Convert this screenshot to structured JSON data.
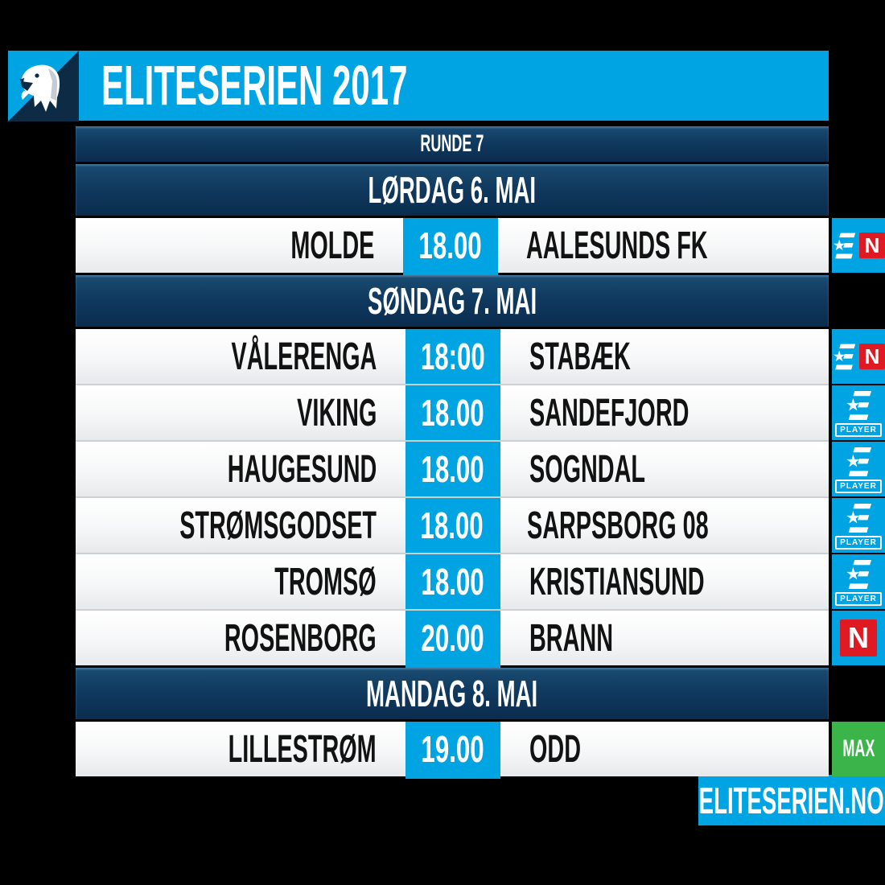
{
  "header": {
    "title": "ELITESERIEN 2017",
    "logo": "eliteserien-bear-logo"
  },
  "round": {
    "label": "RUNDE 7"
  },
  "tv_labels": {
    "n": "N",
    "player": "PLAYER",
    "max": "MAX"
  },
  "footer": {
    "label": "ELITESERIEN.NO"
  },
  "colors": {
    "accent_blue": "#00A4E2",
    "navy_bar": "#0E3456",
    "row_white": "#F4F6F7",
    "broadcaster_red": "#E01A22",
    "broadcaster_green": "#3BB54A",
    "text_black": "#121212",
    "text_white": "#FFFFFF",
    "background": "#000000"
  },
  "schedule": [
    {
      "day": "LØRDAG 6. MAI",
      "matches": [
        {
          "home": "MOLDE",
          "time": "18.00",
          "away": "AALESUNDS FK",
          "tv": "eurosport-norge"
        }
      ]
    },
    {
      "day": "SØNDAG 7. MAI",
      "matches": [
        {
          "home": "VÅLERENGA",
          "time": "18:00",
          "away": "STABÆK",
          "tv": "eurosport-norge"
        },
        {
          "home": "VIKING",
          "time": "18.00",
          "away": "SANDEFJORD",
          "tv": "eurosport-player"
        },
        {
          "home": "HAUGESUND",
          "time": "18.00",
          "away": "SOGNDAL",
          "tv": "eurosport-player"
        },
        {
          "home": "STRØMSGODSET",
          "time": "18.00",
          "away": "SARPSBORG 08",
          "tv": "eurosport-player"
        },
        {
          "home": "TROMSØ",
          "time": "18.00",
          "away": "KRISTIANSUND",
          "tv": "eurosport-player"
        },
        {
          "home": "ROSENBORG",
          "time": "20.00",
          "away": "BRANN",
          "tv": "tv-norge"
        }
      ]
    },
    {
      "day": "MANDAG 8. MAI",
      "matches": [
        {
          "home": "LILLESTRØM",
          "time": "19.00",
          "away": "ODD",
          "tv": "max"
        }
      ]
    }
  ]
}
